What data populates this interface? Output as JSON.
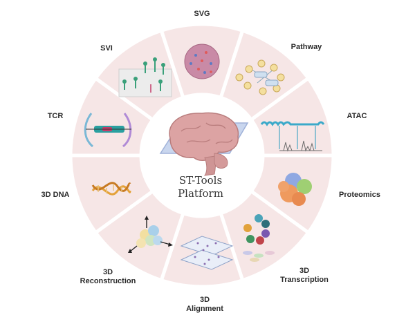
{
  "center": {
    "line1": "ST-Tools",
    "line2": "Platform"
  },
  "segments": [
    {
      "id": "svg",
      "label": "SVG"
    },
    {
      "id": "pathway",
      "label": "Pathway"
    },
    {
      "id": "atac",
      "label": "ATAC"
    },
    {
      "id": "proteomics",
      "label": "Proteomics"
    },
    {
      "id": "3d-transcription",
      "label_line1": "3D",
      "label_line2": "Transcription"
    },
    {
      "id": "3d-alignment",
      "label_line1": "3D",
      "label_line2": "Alignment"
    },
    {
      "id": "3d-reconstruction",
      "label_line1": "3D",
      "label_line2": "Reconstruction"
    },
    {
      "id": "3d-dna",
      "label": "3D DNA"
    },
    {
      "id": "tcr",
      "label": "TCR"
    },
    {
      "id": "svi",
      "label": "SVI"
    }
  ],
  "colors": {
    "segment": "#f6e6e6",
    "ring_gap": "#ffffff",
    "brain": "#d9a0a0",
    "plate": "#b8c8e6"
  }
}
